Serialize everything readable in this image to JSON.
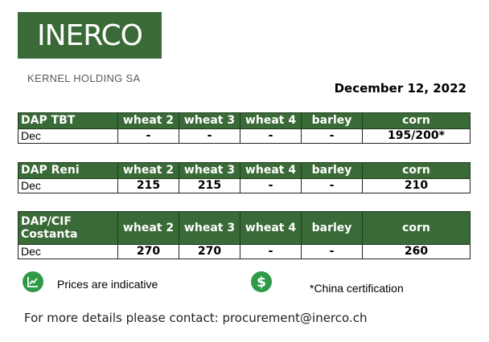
{
  "logo": {
    "text": "INERCO",
    "color": "#3a6a37"
  },
  "company": "KERNEL HOLDING SA",
  "date": "December 12, 2022",
  "colors": {
    "header_bg": "#3a6a37",
    "header_text": "#ffffff",
    "icon_green": "#2e9a47"
  },
  "tables": [
    {
      "header": [
        "DAP TBT",
        "wheat 2",
        "wheat 3",
        "wheat 4",
        "barley",
        "corn"
      ],
      "rows": [
        [
          "Dec",
          "-",
          "-",
          "-",
          "-",
          "195/200*"
        ]
      ]
    },
    {
      "header": [
        "DAP Reni",
        "wheat 2",
        "wheat 3",
        "wheat 4",
        "barley",
        "corn"
      ],
      "rows": [
        [
          "Dec",
          "215",
          "215",
          "-",
          "-",
          "210"
        ]
      ]
    },
    {
      "header": [
        "DAP/CIF Costanta",
        "wheat 2",
        "wheat 3",
        "wheat 4",
        "barley",
        "corn"
      ],
      "rows": [
        [
          "Dec",
          "270",
          "270",
          "-",
          "-",
          "260"
        ]
      ]
    }
  ],
  "legend": {
    "indicative_icon": "chart-trend-icon",
    "indicative_text": "Prices are indicative",
    "dollar_icon": "dollar-icon",
    "certification_note": "*China certification"
  },
  "contact": "For more details please contact: procurement@inerco.ch"
}
